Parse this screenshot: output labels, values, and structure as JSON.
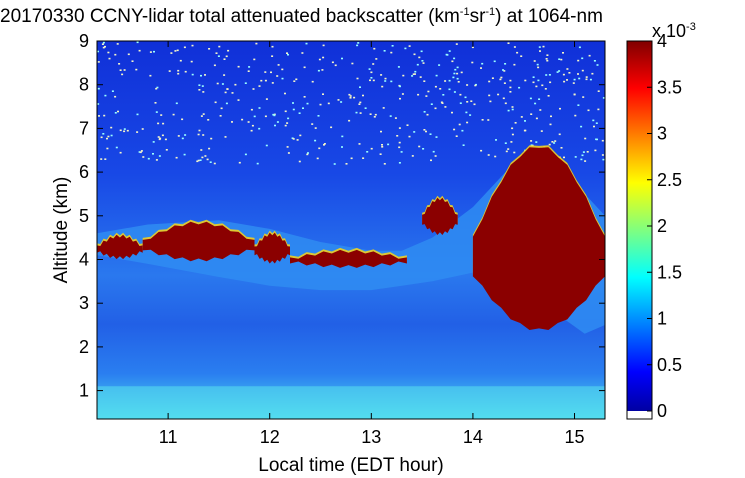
{
  "chart_data": {
    "type": "heatmap",
    "title": {
      "pre": "20170330 CCNY-lidar total attenuated backscatter (km",
      "sup1": "-1",
      "mid": "sr",
      "sup2": "-1",
      "post": ") at 1064-nm"
    },
    "xlabel": "Local time (EDT hour)",
    "ylabel": "Altitude (km)",
    "xlim": [
      10.3,
      15.3
    ],
    "ylim": [
      0.35,
      9
    ],
    "x_ticks": [
      "11",
      "12",
      "13",
      "14",
      "15"
    ],
    "y_ticks": [
      "1",
      "2",
      "3",
      "4",
      "5",
      "6",
      "7",
      "8",
      "9"
    ],
    "colorbar": {
      "range": [
        0,
        4
      ],
      "ticks": [
        "0",
        "0.5",
        "1",
        "1.5",
        "2",
        "2.5",
        "3",
        "3.5",
        "4"
      ],
      "exponent_label": "x 10",
      "exponent": "-3",
      "colormap": "jet"
    },
    "features": {
      "aerosol_layer_top_km": {
        "x": [
          10.3,
          10.8,
          11.5,
          12.0,
          12.5,
          13.0,
          13.3,
          13.6,
          14.0,
          14.4,
          14.8,
          15.1,
          15.3
        ],
        "y": [
          4.6,
          4.8,
          4.9,
          4.7,
          4.4,
          4.2,
          4.2,
          4.5,
          5.2,
          6.2,
          5.8,
          5.5,
          5.0
        ]
      },
      "aerosol_layer_bottom_km": {
        "x": [
          10.3,
          10.8,
          11.5,
          12.0,
          12.5,
          13.0,
          13.3,
          13.6,
          14.0,
          14.4,
          14.8,
          15.1,
          15.3
        ],
        "y": [
          4.1,
          3.9,
          3.6,
          3.4,
          3.3,
          3.3,
          3.4,
          3.5,
          3.7,
          3.3,
          2.8,
          2.3,
          2.5
        ]
      },
      "cloud_layers": [
        {
          "t_start": 10.3,
          "t_end": 10.75,
          "base_km": 4.05,
          "top_km": 4.55
        },
        {
          "t_start": 10.75,
          "t_end": 11.85,
          "base_km": 4.0,
          "top_km": 4.85
        },
        {
          "t_start": 11.85,
          "t_end": 12.2,
          "base_km": 3.95,
          "top_km": 4.6
        },
        {
          "t_start": 12.2,
          "t_end": 13.35,
          "base_km": 3.85,
          "top_km": 4.2
        },
        {
          "t_start": 13.5,
          "t_end": 13.85,
          "base_km": 4.6,
          "top_km": 5.4
        },
        {
          "t_start": 14.0,
          "t_end": 15.3,
          "base_km": 2.4,
          "top_km": 6.6
        }
      ]
    }
  }
}
